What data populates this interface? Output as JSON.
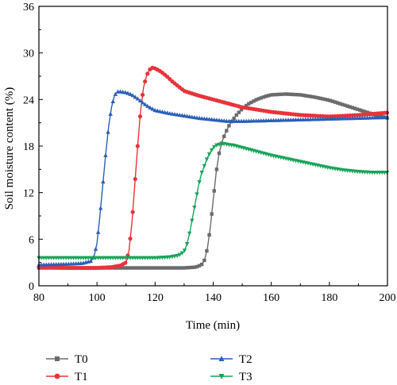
{
  "chart_data": {
    "type": "line",
    "title": "",
    "xlabel": "Time (min)",
    "ylabel": "Soil moisture content (%)",
    "xlim": [
      80,
      200
    ],
    "ylim": [
      0,
      36
    ],
    "xticks": [
      80,
      100,
      120,
      140,
      160,
      180,
      200
    ],
    "yticks": [
      0,
      6,
      12,
      18,
      24,
      30,
      36
    ],
    "grid": false,
    "legend_position": "bottom",
    "series": [
      {
        "name": "T0",
        "color": "#6b6b6b",
        "marker": "square",
        "x": [
          80,
          100,
          120,
          130,
          134,
          136,
          137,
          138,
          139,
          140,
          141,
          142,
          143,
          144,
          145,
          146,
          148,
          150,
          152,
          155,
          158,
          160,
          165,
          170,
          175,
          180,
          185,
          190,
          195,
          200
        ],
        "y": [
          2.3,
          2.3,
          2.3,
          2.3,
          2.4,
          2.7,
          3.3,
          4.8,
          7.5,
          11,
          14.5,
          17,
          18.5,
          19.5,
          20.3,
          21.0,
          22.0,
          22.8,
          23.4,
          24.0,
          24.4,
          24.6,
          24.7,
          24.6,
          24.3,
          23.9,
          23.3,
          22.7,
          22.1,
          21.6
        ]
      },
      {
        "name": "T1",
        "color": "#e8333a",
        "marker": "circle",
        "x": [
          80,
          90,
          100,
          105,
          108,
          110,
          111,
          112,
          113,
          114,
          115,
          116,
          117,
          118,
          119,
          120,
          122,
          124,
          126,
          128,
          130,
          135,
          140,
          145,
          150,
          155,
          160,
          165,
          170,
          180,
          190,
          200
        ],
        "y": [
          2.4,
          2.3,
          2.3,
          2.4,
          2.6,
          3.0,
          4.5,
          8,
          13,
          18,
          22.5,
          25.5,
          27.0,
          27.8,
          28.1,
          28.0,
          27.6,
          27.0,
          26.3,
          25.7,
          25.1,
          24.5,
          24.0,
          23.5,
          23.0,
          22.7,
          22.4,
          22.2,
          22.0,
          21.8,
          22.0,
          22.3
        ]
      },
      {
        "name": "T2",
        "color": "#2a5fb8",
        "marker": "triangle-up",
        "x": [
          80,
          90,
          95,
          98,
          99,
          100,
          101,
          102,
          103,
          104,
          105,
          106,
          107,
          108,
          110,
          112,
          114,
          116,
          118,
          120,
          125,
          130,
          135,
          140,
          145,
          150,
          160,
          170,
          180,
          190,
          200
        ],
        "y": [
          2.7,
          2.8,
          2.9,
          3.2,
          3.8,
          5.5,
          9,
          13,
          17,
          20.5,
          23,
          24.5,
          25.0,
          25.0,
          24.9,
          24.6,
          24.1,
          23.5,
          23.0,
          22.6,
          22.2,
          21.9,
          21.6,
          21.4,
          21.2,
          21.2,
          21.3,
          21.4,
          21.5,
          21.6,
          21.7
        ]
      },
      {
        "name": "T3",
        "color": "#1aa35a",
        "marker": "triangle-down",
        "x": [
          80,
          90,
          100,
          110,
          120,
          125,
          128,
          130,
          131,
          132,
          133,
          134,
          135,
          136,
          137,
          138,
          139,
          140,
          141,
          142,
          143,
          144,
          145,
          147,
          150,
          155,
          160,
          165,
          170,
          175,
          180,
          185,
          190,
          195,
          200
        ],
        "y": [
          3.6,
          3.6,
          3.6,
          3.6,
          3.6,
          3.7,
          3.9,
          4.4,
          5.4,
          7,
          9,
          11,
          13,
          14.5,
          15.5,
          16.5,
          17.2,
          17.8,
          18.1,
          18.2,
          18.3,
          18.3,
          18.2,
          18.1,
          17.8,
          17.3,
          16.8,
          16.4,
          16.0,
          15.6,
          15.2,
          14.9,
          14.7,
          14.6,
          14.6
        ]
      }
    ]
  }
}
